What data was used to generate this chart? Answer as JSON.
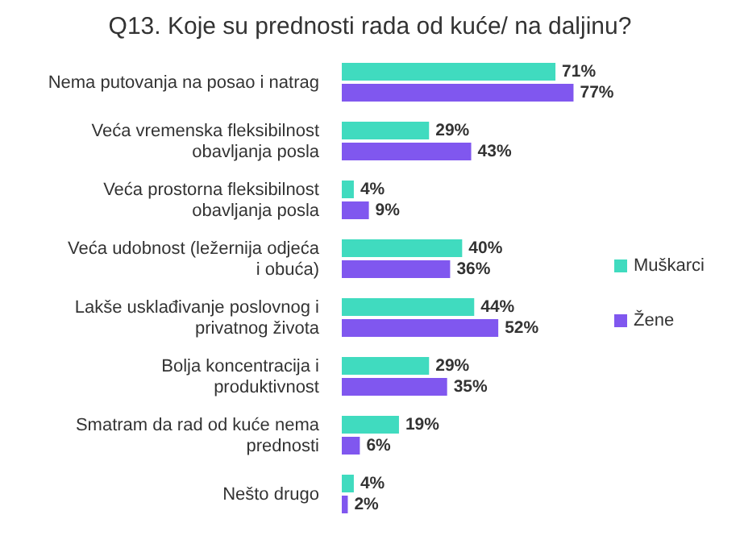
{
  "chart_data": {
    "type": "bar",
    "orientation": "horizontal",
    "title": "Q13. Koje su prednosti rada od kuće/ na daljinu?",
    "categories": [
      "Nema putovanja na posao i natrag",
      "Veća vremenska fleksibilnost obavljanja posla",
      "Veća prostorna fleksibilnost obavljanja posla",
      "Veća udobnost (ležernija odjeća i obuća)",
      "Lakše usklađivanje poslovnog i privatnog života",
      "Bolja koncentracija i produktivnost",
      "Smatram da rad od kuće nema prednosti",
      "Nešto drugo"
    ],
    "series": [
      {
        "name": "Muškarci",
        "color": "#40dbbf",
        "values": [
          71,
          29,
          4,
          40,
          44,
          29,
          19,
          4
        ],
        "value_labels": [
          "71%",
          "29%",
          "4%",
          "40%",
          "44%",
          "29%",
          "19%",
          "4%"
        ]
      },
      {
        "name": "Žene",
        "color": "#8057ef",
        "values": [
          77,
          43,
          9,
          36,
          52,
          35,
          6,
          2
        ],
        "value_labels": [
          "77%",
          "43%",
          "9%",
          "36%",
          "52%",
          "35%",
          "6%",
          "2%"
        ]
      }
    ],
    "legend": "right",
    "tick_labels": "y"
  }
}
